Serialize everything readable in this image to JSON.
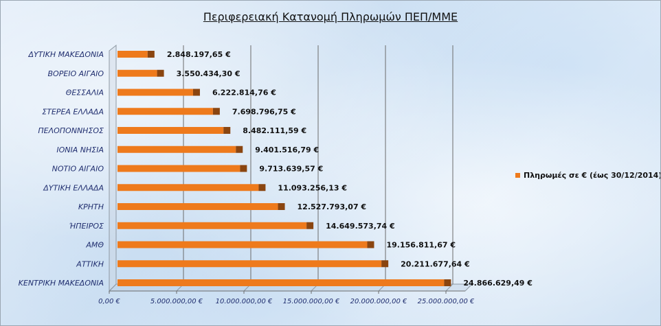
{
  "chart_data": {
    "type": "bar",
    "orientation": "horizontal",
    "title": "Περιφερειακή Κατανομή Πληρωμών ΠΕΠ/ΜΜΕ",
    "categories": [
      "ΔΥΤΙΚΗ ΜΑΚΕΔΟΝΙΑ",
      "ΒΟΡΕΙΟ ΑΙΓΑΙΟ",
      "ΘΕΣΣΑΛΙΑ",
      "ΣΤΕΡΕΑ ΕΛΛΑΔΑ",
      "ΠΕΛΟΠΟΝΝΗΣΟΣ",
      "ΙΟΝΙΑ ΝΗΣΙΑ",
      "ΝΟΤΙΟ ΑΙΓΑΙΟ",
      "ΔΥΤΙΚΗ ΕΛΛΑΔΑ",
      "ΚΡΗΤΗ",
      "ΉΠΕΙΡΟΣ",
      "ΑΜΘ",
      "ΑΤΤΙΚΗ",
      "ΚΕΝΤΡΙΚΗ ΜΑΚΕΔΟΝΙΑ"
    ],
    "series": [
      {
        "name": "Πληρωμές σε € (έως 30/12/2014)",
        "values": [
          2848197.65,
          3550434.3,
          6222814.76,
          7698796.75,
          8482111.59,
          9401516.79,
          9713639.57,
          11093256.13,
          12527793.07,
          14649573.74,
          19156811.67,
          20211677.64,
          24866629.49
        ],
        "labels": [
          "2.848.197,65 €",
          "3.550.434,30 €",
          "6.222.814,76 €",
          "7.698.796,75 €",
          "8.482.111,59 €",
          "9.401.516,79 €",
          "9.713.639,57 €",
          "11.093.256,13 €",
          "12.527.793,07 €",
          "14.649.573,74 €",
          "19.156.811,67 €",
          "20.211.677,64 €",
          "24.866.629,49 €"
        ],
        "color": "#ee7a1c",
        "shadow_color": "#8a4510"
      }
    ],
    "xlim": [
      0,
      25000000
    ],
    "xticks": [
      0,
      5000000,
      10000000,
      15000000,
      20000000,
      25000000
    ],
    "xtick_labels": [
      "0,00 €",
      "5.000.000,00 €",
      "10.000.000,00 €",
      "15.000.000,00 €",
      "20.000.000,00 €",
      "25.000.000,00 €"
    ],
    "grid": true,
    "legend_position": "right"
  }
}
